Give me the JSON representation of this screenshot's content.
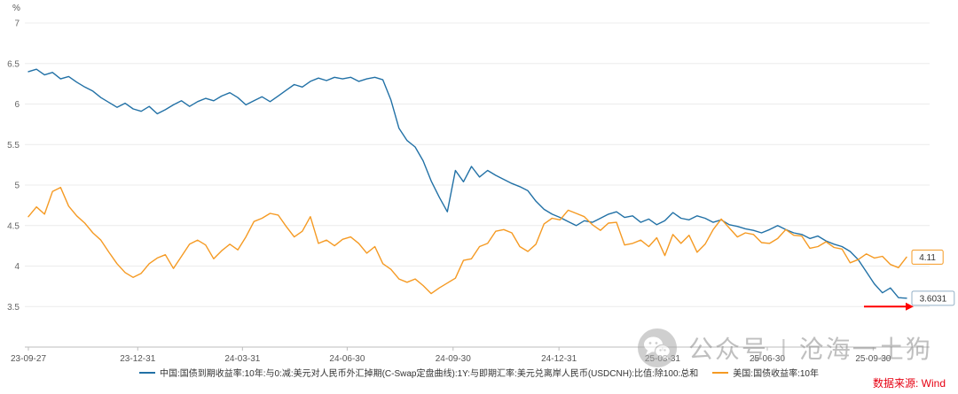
{
  "watermark": {
    "prefix": "公众号",
    "separator": "|",
    "name": "沧海一土狗"
  },
  "footer": {
    "source": "数据来源: Wind"
  },
  "chart_data": {
    "type": "line",
    "title": "",
    "xlabel": "",
    "ylabel": "%",
    "ylim": [
      3,
      7
    ],
    "yticks": [
      3.5,
      4,
      4.5,
      5,
      5.5,
      6,
      6.5,
      7
    ],
    "grid": true,
    "legend_position": "bottom",
    "x_ticks": [
      {
        "label": "23-09-27",
        "day": 0
      },
      {
        "label": "23-12-31",
        "day": 95
      },
      {
        "label": "24-03-31",
        "day": 186
      },
      {
        "label": "24-06-30",
        "day": 277
      },
      {
        "label": "24-09-30",
        "day": 369
      },
      {
        "label": "24-12-31",
        "day": 461
      },
      {
        "label": "25-03-31",
        "day": 551
      },
      {
        "label": "25-06-30",
        "day": 642
      },
      {
        "label": "25-09-30",
        "day": 734
      }
    ],
    "x_dates": [
      "2023-09-27",
      "2023-10-04",
      "2023-10-11",
      "2023-10-18",
      "2023-10-25",
      "2023-11-01",
      "2023-11-08",
      "2023-11-15",
      "2023-11-22",
      "2023-11-29",
      "2023-12-06",
      "2023-12-13",
      "2023-12-20",
      "2023-12-27",
      "2024-01-03",
      "2024-01-10",
      "2024-01-17",
      "2024-01-24",
      "2024-01-31",
      "2024-02-07",
      "2024-02-14",
      "2024-02-21",
      "2024-02-28",
      "2024-03-06",
      "2024-03-13",
      "2024-03-20",
      "2024-03-27",
      "2024-04-03",
      "2024-04-10",
      "2024-04-17",
      "2024-04-24",
      "2024-05-01",
      "2024-05-08",
      "2024-05-15",
      "2024-05-22",
      "2024-05-29",
      "2024-06-05",
      "2024-06-12",
      "2024-06-19",
      "2024-06-26",
      "2024-07-03",
      "2024-07-10",
      "2024-07-17",
      "2024-07-24",
      "2024-07-31",
      "2024-08-07",
      "2024-08-14",
      "2024-08-21",
      "2024-08-28",
      "2024-09-04",
      "2024-09-11",
      "2024-09-18",
      "2024-09-25",
      "2024-10-02",
      "2024-10-09",
      "2024-10-16",
      "2024-10-23",
      "2024-10-30",
      "2024-11-06",
      "2024-11-13",
      "2024-11-20",
      "2024-11-27",
      "2024-12-04",
      "2024-12-11",
      "2024-12-18",
      "2024-12-25",
      "2025-01-01",
      "2025-01-08",
      "2025-01-15",
      "2025-01-22",
      "2025-01-29",
      "2025-02-05",
      "2025-02-12",
      "2025-02-19",
      "2025-02-26",
      "2025-03-05",
      "2025-03-12",
      "2025-03-19",
      "2025-03-26",
      "2025-04-02",
      "2025-04-09",
      "2025-04-16",
      "2025-04-23",
      "2025-04-30",
      "2025-05-07",
      "2025-05-14",
      "2025-05-21",
      "2025-05-28",
      "2025-06-04",
      "2025-06-11",
      "2025-06-18",
      "2025-06-25",
      "2025-07-02",
      "2025-07-09",
      "2025-07-16",
      "2025-07-23",
      "2025-07-30",
      "2025-08-06",
      "2025-08-13",
      "2025-08-20",
      "2025-08-27",
      "2025-09-03",
      "2025-09-10",
      "2025-09-17",
      "2025-09-24",
      "2025-10-01",
      "2025-10-08",
      "2025-10-15",
      "2025-10-22",
      "2025-10-29"
    ],
    "series": [
      {
        "name": "中国:国债到期收益率:10年:与0:减:美元对人民币外汇掉期(C-Swap定盘曲线):1Y:与即期汇率:美元兑离岸人民币(USDCNH):比值:除100:总和",
        "color": "#2271a6",
        "box_color": "#94b0c6",
        "end_label": "3.6031",
        "values": [
          6.4,
          6.43,
          6.36,
          6.39,
          6.31,
          6.34,
          6.27,
          6.21,
          6.16,
          6.08,
          6.02,
          5.96,
          6.01,
          5.94,
          5.91,
          5.97,
          5.88,
          5.93,
          5.99,
          6.04,
          5.97,
          6.03,
          6.07,
          6.04,
          6.1,
          6.14,
          6.08,
          5.99,
          6.04,
          6.09,
          6.03,
          6.1,
          6.17,
          6.24,
          6.21,
          6.28,
          6.32,
          6.29,
          6.33,
          6.31,
          6.33,
          6.28,
          6.31,
          6.33,
          6.3,
          6.05,
          5.7,
          5.55,
          5.47,
          5.3,
          5.05,
          4.85,
          4.67,
          5.18,
          5.04,
          5.23,
          5.1,
          5.18,
          5.12,
          5.07,
          5.02,
          4.98,
          4.93,
          4.8,
          4.7,
          4.64,
          4.6,
          4.55,
          4.5,
          4.56,
          4.54,
          4.59,
          4.64,
          4.67,
          4.6,
          4.62,
          4.54,
          4.58,
          4.51,
          4.56,
          4.66,
          4.59,
          4.57,
          4.62,
          4.59,
          4.54,
          4.57,
          4.51,
          4.49,
          4.46,
          4.44,
          4.41,
          4.45,
          4.5,
          4.45,
          4.41,
          4.39,
          4.34,
          4.37,
          4.31,
          4.27,
          4.24,
          4.18,
          4.08,
          3.93,
          3.78,
          3.67,
          3.73,
          3.61,
          3.6031
        ]
      },
      {
        "name": "美国:国债收益率:10年",
        "color": "#f59a23",
        "box_color": "#f59a23",
        "end_label": "4.11",
        "values": [
          4.61,
          4.73,
          4.64,
          4.92,
          4.97,
          4.74,
          4.62,
          4.53,
          4.41,
          4.32,
          4.17,
          4.03,
          3.92,
          3.86,
          3.91,
          4.03,
          4.1,
          4.14,
          3.97,
          4.12,
          4.27,
          4.32,
          4.26,
          4.09,
          4.19,
          4.27,
          4.2,
          4.36,
          4.55,
          4.59,
          4.65,
          4.63,
          4.49,
          4.36,
          4.43,
          4.61,
          4.28,
          4.32,
          4.25,
          4.33,
          4.36,
          4.28,
          4.16,
          4.24,
          4.03,
          3.96,
          3.84,
          3.8,
          3.84,
          3.76,
          3.66,
          3.73,
          3.79,
          3.85,
          4.07,
          4.09,
          4.24,
          4.28,
          4.43,
          4.45,
          4.41,
          4.24,
          4.18,
          4.27,
          4.52,
          4.59,
          4.57,
          4.69,
          4.65,
          4.61,
          4.51,
          4.44,
          4.53,
          4.54,
          4.26,
          4.28,
          4.32,
          4.24,
          4.35,
          4.13,
          4.39,
          4.28,
          4.38,
          4.17,
          4.27,
          4.45,
          4.58,
          4.47,
          4.36,
          4.41,
          4.39,
          4.29,
          4.28,
          4.34,
          4.45,
          4.38,
          4.37,
          4.22,
          4.24,
          4.3,
          4.23,
          4.21,
          4.04,
          4.08,
          4.15,
          4.1,
          4.12,
          4.02,
          3.98,
          4.11
        ]
      }
    ],
    "annotations": [
      {
        "type": "arrow-right",
        "color": "#ff0000",
        "y_value": 3.5
      }
    ]
  }
}
